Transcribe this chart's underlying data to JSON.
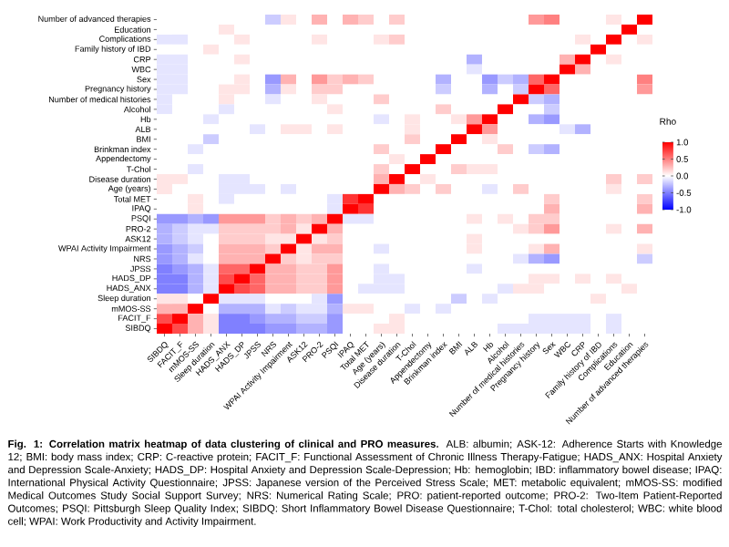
{
  "chart_data": {
    "type": "heatmap",
    "categories": [
      "SIBDQ",
      "FACIT_F",
      "mMOS-SS",
      "Sleep duration",
      "HADS_ANX",
      "HADS_DP",
      "JPSS",
      "NRS",
      "WPAI Activity Impairment",
      "ASK12",
      "PRO-2",
      "PSQI",
      "IPAQ",
      "Total MET",
      "Age (years)",
      "Disease duration",
      "T-Chol",
      "Appendectomy",
      "Brinkman index",
      "BMI",
      "ALB",
      "Hb",
      "Alcohol",
      "Number of medical histories",
      "Pregnancy history",
      "Sex",
      "WBC",
      "CRP",
      "Family history of IBD",
      "Complications",
      "Education",
      "Number of advanced therapies"
    ],
    "y_categories": [
      "Number of advanced therapies",
      "Education",
      "Complications",
      "Family history of IBD",
      "CRP",
      "WBC",
      "Sex",
      "Pregnancy history",
      "Number of medical histories",
      "Alcohol",
      "Hb",
      "ALB",
      "BMI",
      "Brinkman index",
      "Appendectomy",
      "T-Chol",
      "Disease duration",
      "Age (years)",
      "Total MET",
      "IPAQ",
      "PSQI",
      "PRO-2",
      "ASK12",
      "WPAI Activity Impairment",
      "NRS",
      "JPSS",
      "HADS_DP",
      "HADS_ANX",
      "Sleep duration",
      "mMOS-SS",
      "FACIT_F",
      "SIBDQ"
    ],
    "cells": [
      [
        0,
        0,
        0,
        0,
        0,
        0,
        0,
        -0.2,
        0.1,
        0,
        0.3,
        0,
        0.3,
        0.2,
        0,
        0.2,
        0,
        0,
        0,
        0,
        0,
        0,
        0,
        0,
        0.4,
        0.5,
        0,
        0,
        0,
        0.1,
        0,
        1
      ],
      [
        0,
        0,
        0,
        0,
        0.1,
        0,
        0,
        0,
        0,
        0,
        0,
        0,
        0,
        0,
        0,
        0,
        0,
        0,
        0,
        0,
        0,
        0,
        0,
        0,
        0,
        0,
        0,
        0,
        0,
        0,
        1,
        0
      ],
      [
        -0.1,
        -0.1,
        0,
        0,
        0,
        0.1,
        0,
        0,
        0,
        0,
        0.1,
        0,
        0,
        0,
        0.1,
        0.2,
        0,
        0,
        0,
        0,
        0,
        0,
        0,
        0,
        0,
        0,
        0,
        0.1,
        0,
        1,
        0,
        0.1
      ],
      [
        0,
        0,
        0,
        0.1,
        0,
        0,
        0,
        0,
        0,
        0,
        0,
        0,
        0,
        0,
        0,
        0,
        0,
        0,
        0,
        0,
        0,
        0,
        0,
        0,
        0,
        0,
        0,
        0,
        1,
        0,
        0,
        0
      ],
      [
        -0.1,
        -0.1,
        0,
        0,
        0,
        0.1,
        0,
        0,
        0,
        0,
        0,
        0,
        0,
        0,
        0,
        0,
        0,
        0,
        0,
        0,
        -0.3,
        0,
        0,
        0,
        0,
        0,
        0.3,
        1,
        0,
        0.1,
        0,
        0
      ],
      [
        -0.1,
        -0.1,
        0,
        0,
        0,
        0,
        0,
        0,
        0,
        0,
        0,
        0,
        0,
        0,
        0,
        0,
        0,
        0,
        0,
        0,
        -0.1,
        0,
        0,
        0,
        0,
        0,
        1,
        0.3,
        0,
        0,
        0,
        0
      ],
      [
        -0.1,
        -0.1,
        0,
        0,
        0,
        0.1,
        0,
        -0.4,
        0.3,
        0,
        0.4,
        0.2,
        0.3,
        0.2,
        0,
        0,
        0,
        0,
        -0.3,
        0,
        0,
        -0.4,
        -0.2,
        -0.3,
        0.6,
        1,
        0,
        0,
        0,
        0,
        0,
        0.5
      ],
      [
        -0.1,
        -0.1,
        0,
        0,
        0.1,
        0.1,
        0,
        -0.3,
        0.1,
        0,
        0.2,
        0.2,
        0,
        0,
        0,
        0,
        0,
        0,
        -0.2,
        0,
        0,
        -0.3,
        0,
        -0.2,
        1,
        0.6,
        0,
        0,
        0,
        0,
        0,
        0.4
      ],
      [
        -0.1,
        0,
        0,
        0,
        0.1,
        0,
        0,
        -0.1,
        0,
        0,
        0.1,
        0,
        0,
        0,
        0.2,
        0,
        0,
        0,
        0,
        0,
        0,
        0,
        0,
        1,
        -0.2,
        -0.3,
        0,
        0,
        0,
        0,
        0,
        0
      ],
      [
        -0.1,
        0,
        0,
        0,
        -0.1,
        0,
        0,
        0,
        0,
        0,
        0,
        0.1,
        0,
        0,
        0,
        0,
        0,
        0,
        0.2,
        0,
        0,
        0,
        1,
        0,
        0,
        -0.2,
        0,
        0,
        0,
        0,
        0,
        0
      ],
      [
        0,
        0,
        0,
        -0.1,
        0,
        0,
        0,
        0,
        0,
        0,
        0,
        0,
        0,
        0,
        -0.1,
        0,
        0.1,
        0,
        0,
        0.1,
        0.4,
        1,
        0,
        0,
        -0.3,
        -0.4,
        0,
        0,
        0,
        0,
        0,
        0
      ],
      [
        0,
        0,
        0,
        0,
        0,
        0,
        -0.1,
        0,
        0.1,
        0.1,
        0,
        0.1,
        0,
        0,
        0,
        0,
        0.1,
        0,
        0,
        0,
        1,
        0.4,
        0,
        0,
        0,
        0,
        -0.1,
        -0.3,
        0,
        0,
        0,
        0
      ],
      [
        0,
        0,
        0,
        -0.2,
        0,
        0,
        0,
        0,
        0,
        0,
        0,
        0,
        0,
        0,
        0,
        0,
        0.2,
        0,
        0,
        1,
        0,
        0.1,
        0,
        0,
        0,
        0,
        0,
        0,
        0,
        0,
        0,
        0
      ],
      [
        0,
        0,
        -0.1,
        0,
        0,
        0,
        0,
        0,
        0,
        0,
        0,
        0,
        0,
        0,
        0.2,
        0,
        0,
        0,
        1,
        0,
        0,
        0,
        0.2,
        0,
        -0.2,
        -0.3,
        0,
        0,
        0,
        0,
        0,
        0
      ],
      [
        0,
        0,
        0,
        0,
        0,
        0,
        0,
        0,
        0,
        0,
        0,
        0,
        0,
        0,
        0,
        0.1,
        0,
        1,
        0,
        0,
        0,
        0,
        0,
        0,
        0,
        0,
        0,
        0,
        0,
        0,
        0,
        0
      ],
      [
        0,
        0,
        -0.1,
        0,
        0,
        0,
        0,
        0,
        0,
        0,
        0,
        0,
        0,
        0,
        0.2,
        0,
        1,
        0,
        0,
        0.2,
        0.1,
        0.1,
        0,
        0,
        0,
        0,
        0,
        0,
        0,
        0,
        0,
        0
      ],
      [
        0.1,
        0.1,
        0,
        0,
        -0.1,
        -0.1,
        0,
        0,
        0,
        0,
        0,
        0,
        0,
        0,
        0.3,
        1,
        0,
        0.1,
        0,
        0,
        0,
        0,
        0,
        0,
        0,
        0,
        0,
        0,
        0,
        0.2,
        0,
        0.2
      ],
      [
        0.1,
        0,
        0,
        0,
        -0.1,
        -0.1,
        -0.1,
        0,
        -0.1,
        0,
        0,
        0,
        0,
        0,
        1,
        0.3,
        0.2,
        0,
        0.2,
        0,
        0,
        -0.1,
        0,
        0.2,
        0,
        0,
        0,
        0,
        0,
        0.1,
        0,
        0
      ],
      [
        0,
        0,
        0.1,
        0,
        -0.1,
        0,
        0,
        0,
        0,
        0,
        0,
        -0.1,
        0.8,
        1,
        0,
        0,
        0,
        0,
        0,
        0,
        0,
        0,
        0,
        0,
        0,
        0.2,
        0,
        0,
        0,
        0,
        0,
        0.2
      ],
      [
        0,
        0,
        0.1,
        0,
        0,
        0,
        0,
        0,
        0,
        0,
        0,
        -0.1,
        1,
        0.8,
        0,
        0,
        0,
        0,
        0,
        0,
        0,
        0,
        0,
        0,
        0,
        0.3,
        0,
        0,
        0,
        0,
        0,
        0.3
      ],
      [
        -0.4,
        -0.4,
        -0.3,
        -0.4,
        0.4,
        0.4,
        0.4,
        0.2,
        0.3,
        0.2,
        0.3,
        1,
        -0.1,
        -0.1,
        0,
        0,
        0,
        0,
        0,
        0,
        0.1,
        0,
        0.1,
        0,
        0.2,
        0.2,
        0,
        0,
        0,
        0,
        0,
        0
      ],
      [
        -0.3,
        -0.2,
        -0.1,
        -0.1,
        0.2,
        0.2,
        0.2,
        0.2,
        0.3,
        0.1,
        1,
        0.3,
        0,
        0,
        0,
        0,
        0,
        0,
        0,
        0,
        0,
        0,
        0,
        0.1,
        0.2,
        0.4,
        0,
        0,
        0,
        0.1,
        0,
        0.3
      ],
      [
        -0.3,
        -0.2,
        -0.1,
        0,
        0.2,
        0.2,
        0.2,
        0.1,
        0.1,
        1,
        0.1,
        0.2,
        0,
        0,
        0,
        0,
        0,
        0,
        0,
        0,
        0.1,
        0,
        0,
        0,
        0,
        0,
        0,
        0,
        0,
        0,
        0,
        0
      ],
      [
        -0.4,
        -0.3,
        -0.2,
        0,
        0.3,
        0.3,
        0.3,
        0.2,
        1,
        0.1,
        0.3,
        0.3,
        0,
        0,
        -0.1,
        0,
        0,
        0,
        0,
        0,
        0.1,
        0,
        0,
        0,
        0.1,
        0.3,
        0,
        0,
        0,
        0,
        0,
        0.1
      ],
      [
        -0.4,
        -0.3,
        -0.1,
        0,
        0.3,
        0.3,
        0.3,
        1,
        0.2,
        0.1,
        0.2,
        0.2,
        0,
        0,
        0,
        0,
        0,
        0,
        0,
        0,
        0,
        0,
        0,
        -0.1,
        -0.3,
        -0.4,
        0,
        0,
        0,
        0,
        0,
        -0.2
      ],
      [
        -0.5,
        -0.4,
        -0.3,
        -0.1,
        0.6,
        0.6,
        1,
        0.3,
        0.3,
        0.2,
        0.2,
        0.4,
        0,
        0,
        -0.1,
        0,
        0,
        0,
        0,
        0,
        -0.1,
        0,
        0,
        0,
        0,
        0,
        0,
        0,
        0,
        0,
        0,
        0
      ],
      [
        -0.5,
        -0.5,
        -0.3,
        -0.1,
        0.7,
        1,
        0.6,
        0.3,
        0.3,
        0.2,
        0.2,
        0.4,
        0,
        0,
        -0.1,
        -0.1,
        0,
        0,
        0,
        0,
        0,
        0,
        0,
        0,
        0.1,
        0.1,
        0,
        0.1,
        0,
        0.1,
        0,
        0
      ],
      [
        -0.5,
        -0.5,
        -0.3,
        -0.1,
        1,
        0.7,
        0.6,
        0.3,
        0.3,
        0.2,
        0.2,
        0.4,
        0,
        -0.1,
        -0.1,
        -0.1,
        0,
        0,
        0,
        0,
        0,
        0,
        -0.1,
        0.1,
        0.1,
        0,
        0,
        0,
        0,
        0,
        0.1,
        0
      ],
      [
        0.1,
        0.1,
        0,
        1,
        -0.1,
        -0.1,
        -0.1,
        0,
        0,
        0,
        -0.1,
        -0.4,
        0,
        0,
        0,
        0,
        0,
        0,
        0,
        -0.2,
        0,
        -0.1,
        0,
        0,
        0,
        0,
        0,
        0,
        0.1,
        0,
        0,
        0
      ],
      [
        0.3,
        0.3,
        1,
        0,
        -0.3,
        -0.3,
        -0.3,
        -0.1,
        -0.2,
        -0.1,
        -0.1,
        -0.3,
        0.1,
        0.1,
        0,
        0,
        -0.1,
        0,
        -0.1,
        0,
        0,
        0,
        0,
        0,
        0,
        0,
        0,
        0,
        0,
        0,
        0,
        0
      ],
      [
        0.7,
        1,
        0.3,
        0.1,
        -0.5,
        -0.5,
        -0.4,
        -0.3,
        -0.3,
        -0.2,
        -0.2,
        -0.4,
        0,
        0,
        0,
        0.1,
        0,
        0,
        0,
        0,
        0,
        0,
        0,
        0,
        -0.1,
        -0.1,
        -0.1,
        -0.1,
        0,
        -0.1,
        0,
        0
      ],
      [
        1,
        0.7,
        0.3,
        0.1,
        -0.5,
        -0.5,
        -0.5,
        -0.4,
        -0.4,
        -0.3,
        -0.3,
        -0.4,
        0,
        0,
        0.1,
        0.1,
        0,
        0,
        0,
        0,
        0,
        0,
        -0.1,
        -0.1,
        -0.1,
        -0.1,
        -0.1,
        -0.1,
        0,
        -0.1,
        0,
        0
      ]
    ],
    "clabel": "Rho",
    "clim": [
      -1,
      1
    ],
    "cticks": [
      {
        "value": 1,
        "label": "1.0"
      },
      {
        "value": 0.5,
        "label": "0.5"
      },
      {
        "value": 0,
        "label": "0.0"
      },
      {
        "value": -0.5,
        "label": "-0.5"
      },
      {
        "value": -1,
        "label": "-1.0"
      }
    ],
    "annotations": [
      "**Fig. 1: Correlation matrix heatmap of data clustering of clinical and PRO measures.** ALB: albumin; ASK-12: Adherence Starts with Knowledge 12; BMI: body mass index; CRP: C-reactive protein; FACIT_F: Functional Assessment of Chronic Illness Therapy-Fatigue; HADS_ANX: Hospital Anxiety and Depression Scale-Anxiety; HADS_DP: Hospital Anxiety and Depression Scale-Depression; Hb: hemoglobin; IBD: inflammatory bowel disease; IPAQ: International Physical Activity Questionnaire; JPSS: Japanese version of the Perceived Stress Scale; MET: metabolic equivalent; mMOS-SS: modified Medical Outcomes Study Social Support Survey; NRS: Numerical Rating Scale; PRO: patient-reported outcome; PRO-2: Two-Item Patient-Reported Outcomes; PSQI: Pittsburgh Sleep Quality Index; SIBDQ: Short Inflammatory Bowel Disease Questionnaire; T-Chol: total cholesterol; WBC: white blood cell; WPAI: Work Productivity and Activity Impairment."
    ]
  }
}
